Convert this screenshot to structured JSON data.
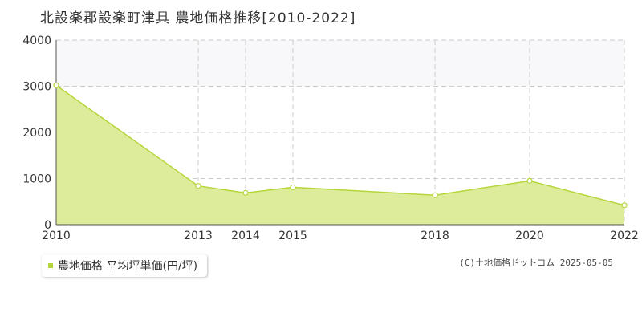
{
  "title": "北設楽郡設楽町津具 農地価格推移[2010-2022]",
  "legend": {
    "label": "農地価格 平均坪単価(円/坪)"
  },
  "copyright": "(C)土地価格ドットコム 2025-05-05",
  "chart_data": {
    "type": "area",
    "x": [
      2010,
      2013,
      2014,
      2015,
      2018,
      2020,
      2022
    ],
    "series": [
      {
        "name": "農地価格 平均坪単価(円/坪)",
        "values": [
          3020,
          840,
          690,
          810,
          640,
          950,
          420
        ]
      }
    ],
    "xlim": [
      2010,
      2022
    ],
    "ylim": [
      0,
      4000
    ],
    "yticks": [
      0,
      1000,
      2000,
      3000,
      4000
    ],
    "xticks": [
      2010,
      2013,
      2014,
      2015,
      2018,
      2020,
      2022
    ],
    "colors": {
      "fill": "#dcec9a",
      "line": "#b5d63a",
      "band": "#f8f7fa",
      "grid": "#cccccc"
    },
    "grid": true
  }
}
